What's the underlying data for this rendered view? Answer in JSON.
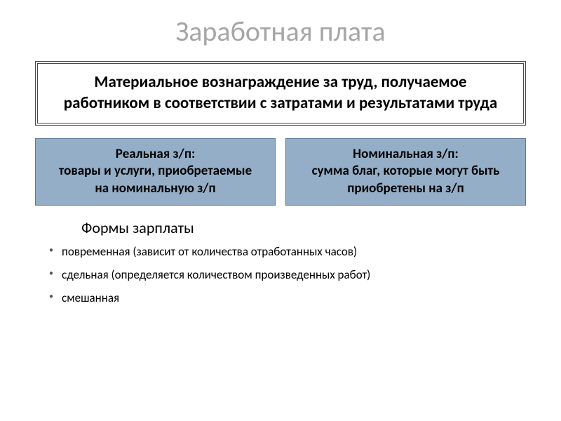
{
  "title": "Заработная плата",
  "definition": "Материальное вознаграждение за труд, получаемое работником в соответствии с затратами и результатами труда",
  "leftBox": "Реальная з/п:\nтовары и услуги, приобретаемые\nна номинальную з/п",
  "rightBox": "Номинальная з/п:\nсумма благ, которые могут быть приобретены на з/п",
  "sectionTitle": "Формы зарплаты",
  "bullets": [
    "повременная (зависит от количества отработанных часов)",
    "сдельная (определяется количеством произведенных работ)",
    "смешанная"
  ],
  "colors": {
    "titleColor": "#a6a6a6",
    "boxBg": "#94aec7",
    "boxBorder": "#5a7a99",
    "defBorder": "#4a4a4a",
    "background": "#ffffff",
    "text": "#000000"
  },
  "typography": {
    "titleSize": 40,
    "defSize": 23,
    "boxSize": 19,
    "sectionSize": 22,
    "bulletSize": 17
  }
}
